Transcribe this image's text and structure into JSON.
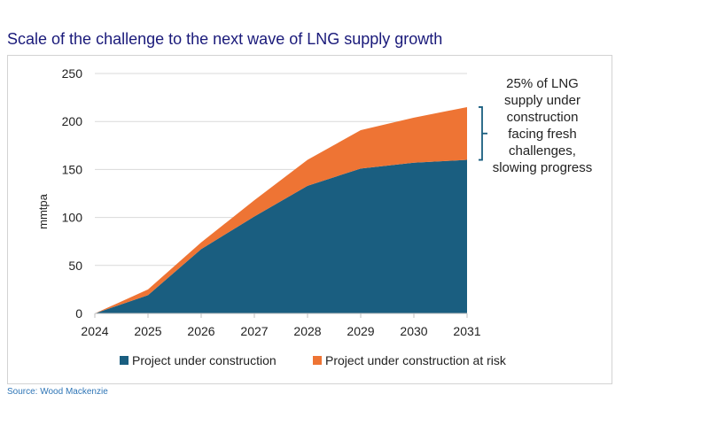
{
  "title": "Scale of the challenge to the next wave of LNG supply growth",
  "source": "Source:  Wood Mackenzie",
  "chart_data": {
    "type": "area",
    "stacked": true,
    "title": "",
    "xlabel": "",
    "ylabel": "mmtpa",
    "ylim": [
      0,
      250
    ],
    "yticks": [
      0,
      50,
      100,
      150,
      200,
      250
    ],
    "x": [
      "2024",
      "2025",
      "2026",
      "2027",
      "2028",
      "2029",
      "2030",
      "2031"
    ],
    "grid": true,
    "legend_position": "bottom",
    "series": [
      {
        "name": "Project under construction",
        "color": "#1a5e80",
        "values": [
          0,
          19,
          67,
          101,
          133,
          151,
          157,
          160
        ]
      },
      {
        "name": "Project under construction at risk",
        "color": "#ee7434",
        "values": [
          0,
          6,
          7,
          17,
          27,
          40,
          47,
          55
        ]
      }
    ],
    "annotation": {
      "lines": [
        "25% of LNG",
        "supply under",
        "construction",
        "facing fresh",
        "challenges,",
        "slowing progress"
      ],
      "bracket_color": "#1a5e80"
    }
  }
}
